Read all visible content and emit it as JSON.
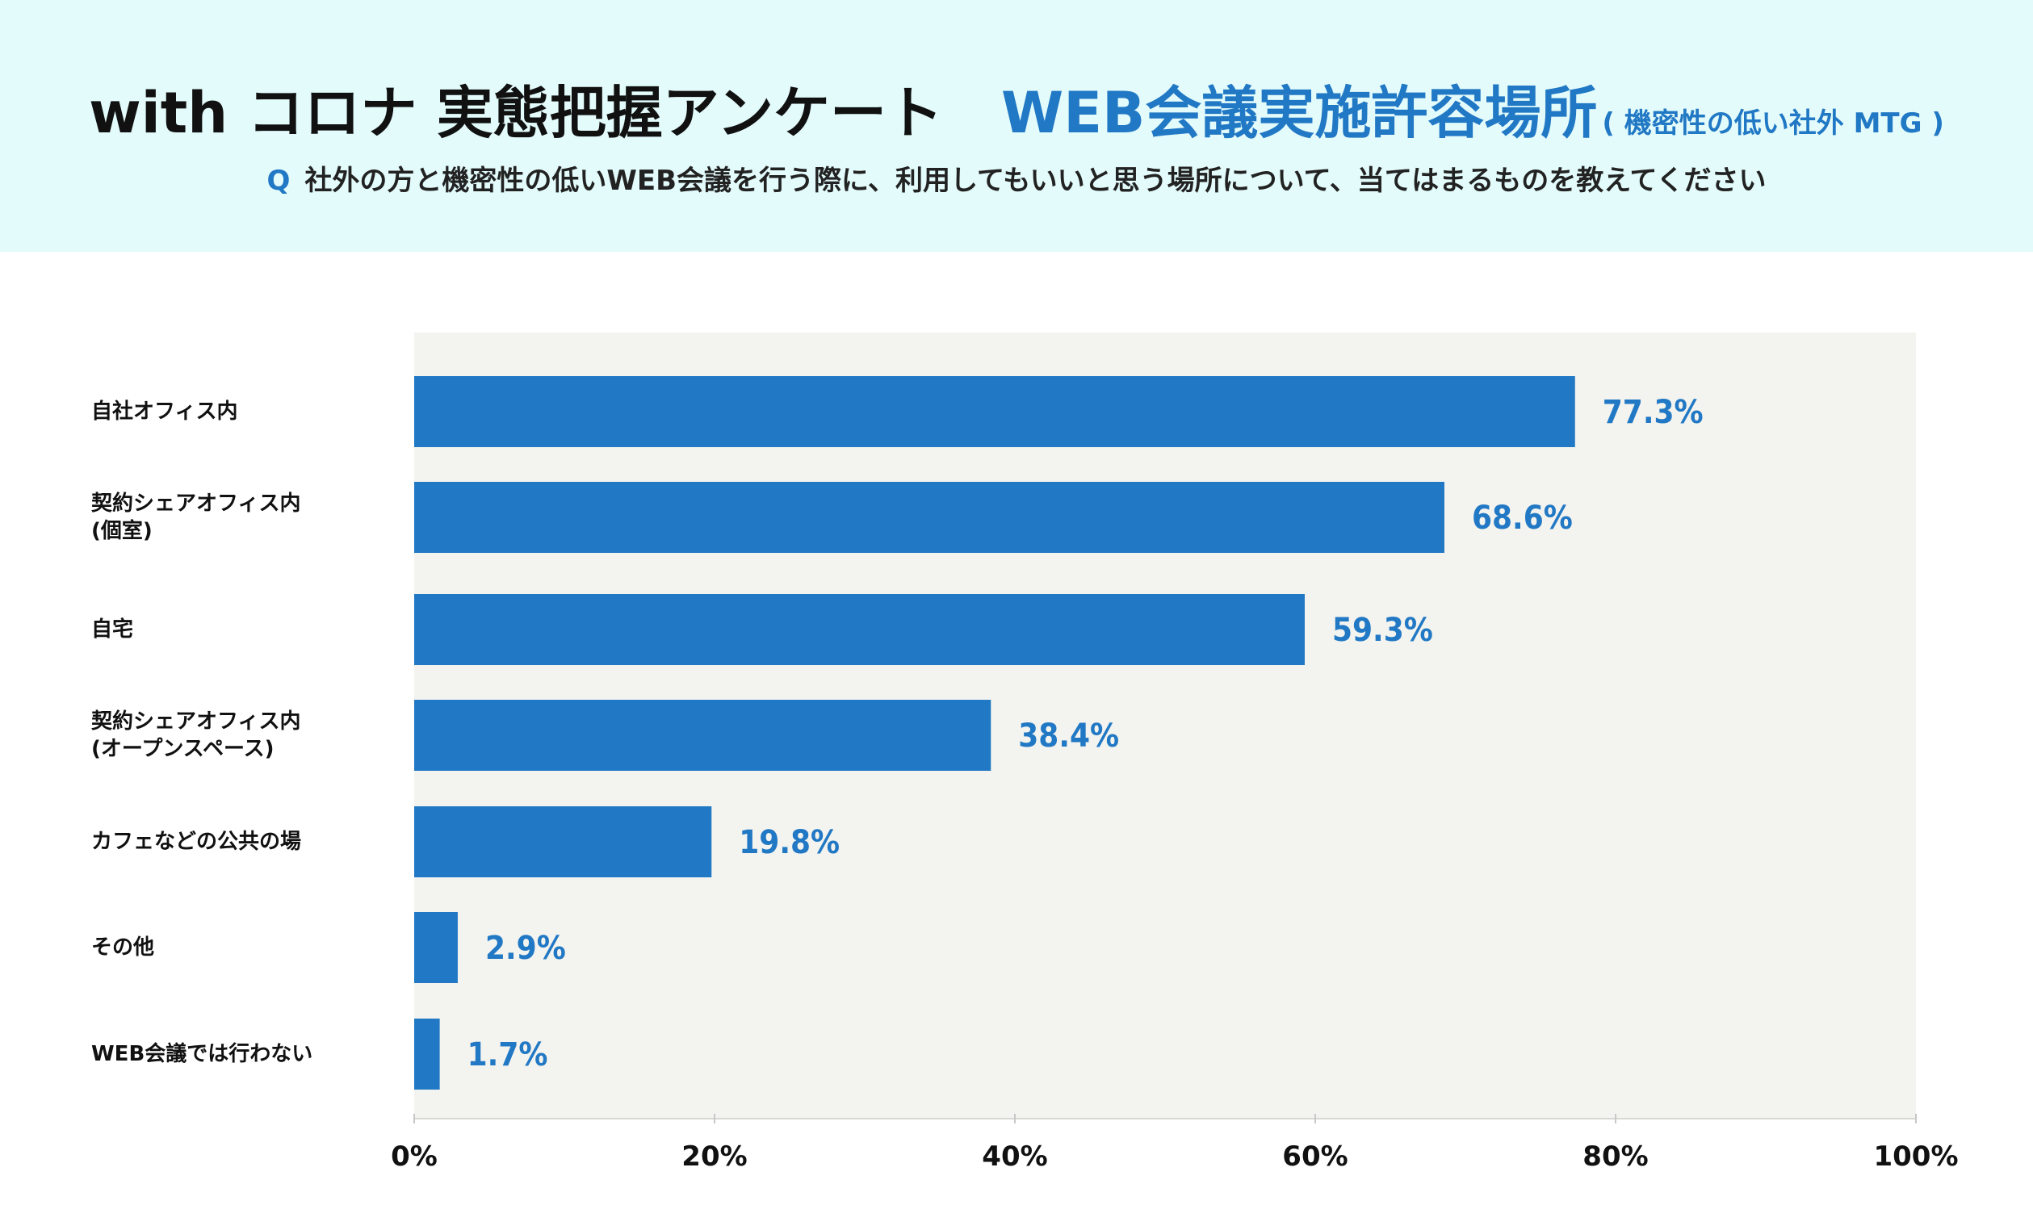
{
  "header": {
    "title_main": "with コロナ 実態把握アンケート",
    "title_accent": "WEB会議実施許容場所",
    "title_note": "( 機密性の低い社外 MTG )",
    "question_mark": "Q",
    "question_text": "社外の方と機密性の低いWEB会議を行う際に、利用してもいいと思う場所について、当てはまるものを教えてください"
  },
  "colors": {
    "header_bg": "#e3fbfb",
    "plot_bg": "#f3f3ef",
    "bar": "#2178c4",
    "value_text": "#2178c4"
  },
  "chart_data": {
    "type": "bar",
    "orientation": "horizontal",
    "categories": [
      "自社オフィス内",
      "契約シェアオフィス内\n(個室)",
      "自宅",
      "契約シェアオフィス内\n(オープンスペース)",
      "カフェなどの公共の場",
      "その他",
      "WEB会議では行わない"
    ],
    "values": [
      77.3,
      68.6,
      59.3,
      38.4,
      19.8,
      2.9,
      1.7
    ],
    "value_labels": [
      "77.3%",
      "68.6%",
      "59.3%",
      "38.4%",
      "19.8%",
      "2.9%",
      "1.7%"
    ],
    "xlim": [
      0,
      100
    ],
    "xticks": [
      0,
      20,
      40,
      60,
      80,
      100
    ],
    "xtick_labels": [
      "0%",
      "20%",
      "40%",
      "60%",
      "80%",
      "100%"
    ],
    "grid": false,
    "legend": "none"
  }
}
